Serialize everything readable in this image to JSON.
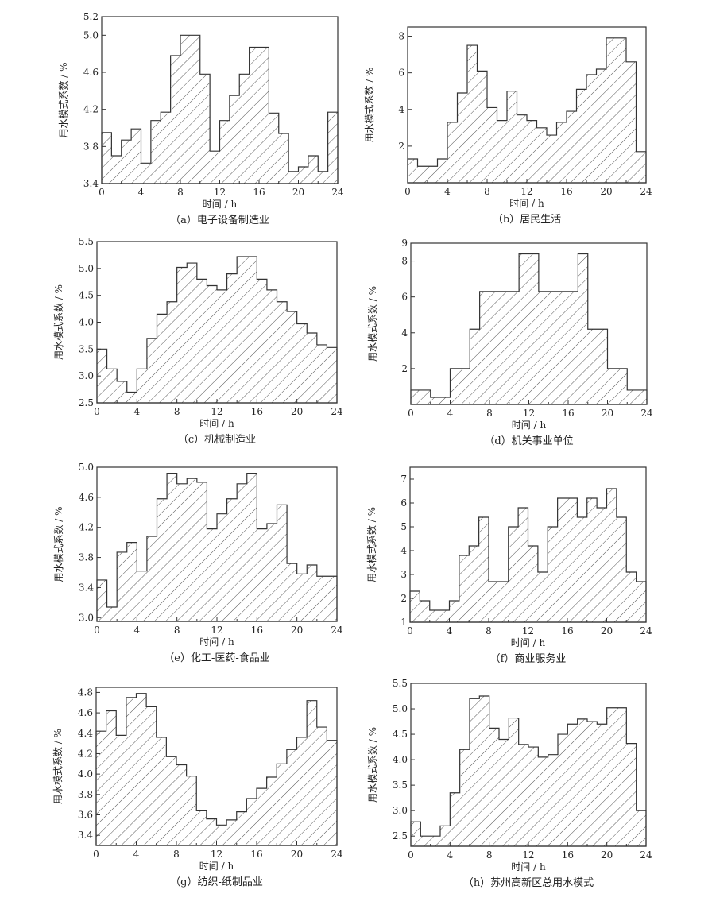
{
  "figure": {
    "ylabel": "用水模式系数 / %",
    "xlabel": "时间 / h",
    "hatch_color": "#333333"
  },
  "chart_data": [
    {
      "id": "a",
      "type": "bar",
      "caption": "（a）电子设备制造业",
      "xlabel": "时间 / h",
      "ylabel": "用水模式系数 / %",
      "xlim": [
        0,
        24
      ],
      "ylim": [
        3.4,
        5.2
      ],
      "xticks": [
        0,
        4,
        8,
        12,
        16,
        20,
        24
      ],
      "yticks": [
        3.4,
        3.8,
        4.2,
        4.6,
        5.0,
        5.2
      ],
      "ytick_labels": [
        "3.4",
        "3.8",
        "4.2",
        "4.6",
        "5.0",
        "5.2"
      ],
      "categories": [
        "0",
        "1",
        "2",
        "3",
        "4",
        "5",
        "6",
        "7",
        "8",
        "9",
        "10",
        "11",
        "12",
        "13",
        "14",
        "15",
        "16",
        "17",
        "18",
        "19",
        "20",
        "21",
        "22",
        "23"
      ],
      "values": [
        3.95,
        3.7,
        3.87,
        3.99,
        3.62,
        4.08,
        4.17,
        4.78,
        5.0,
        5.0,
        4.58,
        3.75,
        4.08,
        4.35,
        4.58,
        4.87,
        4.87,
        4.16,
        3.94,
        3.53,
        3.58,
        3.7,
        3.53,
        4.17
      ]
    },
    {
      "id": "b",
      "type": "bar",
      "caption": "（b）居民生活",
      "xlabel": "时间 / h",
      "ylabel": "用水模式系数 / %",
      "xlim": [
        0,
        24
      ],
      "ylim": [
        0,
        8.5
      ],
      "xticks": [
        0,
        4,
        8,
        12,
        16,
        20,
        24
      ],
      "yticks": [
        2,
        4,
        6,
        8
      ],
      "ytick_labels": [
        "2",
        "4",
        "6",
        "8"
      ],
      "categories": [
        "0",
        "1",
        "2",
        "3",
        "4",
        "5",
        "6",
        "7",
        "8",
        "9",
        "10",
        "11",
        "12",
        "13",
        "14",
        "15",
        "16",
        "17",
        "18",
        "19",
        "20",
        "21",
        "22",
        "23"
      ],
      "values": [
        1.3,
        0.9,
        0.9,
        1.3,
        3.3,
        4.9,
        7.5,
        6.1,
        4.1,
        3.4,
        5.0,
        3.7,
        3.4,
        3.0,
        2.6,
        3.3,
        3.9,
        5.1,
        5.9,
        6.2,
        7.9,
        7.9,
        6.6,
        1.7
      ]
    },
    {
      "id": "c",
      "type": "bar",
      "caption": "（c）机械制造业",
      "xlabel": "时间 / h",
      "ylabel": "用水模式系数 / %",
      "xlim": [
        0,
        24
      ],
      "ylim": [
        2.5,
        5.5
      ],
      "xticks": [
        0,
        4,
        8,
        12,
        16,
        20,
        24
      ],
      "yticks": [
        2.5,
        3.0,
        3.5,
        4.0,
        4.5,
        5.0,
        5.5
      ],
      "ytick_labels": [
        "2.5",
        "3.0",
        "3.5",
        "4.0",
        "4.5",
        "5.0",
        "5.5"
      ],
      "categories": [
        "0",
        "1",
        "2",
        "3",
        "4",
        "5",
        "6",
        "7",
        "8",
        "9",
        "10",
        "11",
        "12",
        "13",
        "14",
        "15",
        "16",
        "17",
        "18",
        "19",
        "20",
        "21",
        "22",
        "23"
      ],
      "values": [
        3.5,
        3.13,
        2.9,
        2.7,
        3.13,
        3.7,
        4.15,
        4.38,
        5.02,
        5.1,
        4.8,
        4.68,
        4.6,
        4.9,
        5.22,
        5.22,
        4.8,
        4.6,
        4.38,
        4.2,
        3.97,
        3.8,
        3.58,
        3.53
      ]
    },
    {
      "id": "d",
      "type": "bar",
      "caption": "（d）机关事业单位",
      "xlabel": "时间 / h",
      "ylabel": "用水模式系数 / %",
      "xlim": [
        0,
        24
      ],
      "ylim": [
        0,
        9
      ],
      "xticks": [
        0,
        4,
        8,
        12,
        16,
        20,
        24
      ],
      "yticks": [
        2,
        4,
        6,
        8,
        9
      ],
      "ytick_labels": [
        "2",
        "4",
        "6",
        "8",
        "9"
      ],
      "categories": [
        "0",
        "1",
        "2",
        "3",
        "4",
        "5",
        "6",
        "7",
        "8",
        "9",
        "10",
        "11",
        "12",
        "13",
        "14",
        "15",
        "16",
        "17",
        "18",
        "19",
        "20",
        "21",
        "22",
        "23"
      ],
      "values": [
        0.8,
        0.8,
        0.4,
        0.4,
        2.0,
        2.0,
        4.2,
        6.3,
        6.3,
        6.3,
        6.3,
        8.4,
        8.4,
        6.3,
        6.3,
        6.3,
        6.3,
        8.4,
        4.2,
        4.2,
        2.0,
        2.0,
        0.8,
        0.8
      ]
    },
    {
      "id": "e",
      "type": "bar",
      "caption": "（e）化工-医药-食品业",
      "xlabel": "时间 / h",
      "ylabel": "用水模式系数 / %",
      "xlim": [
        0,
        24
      ],
      "ylim": [
        2.95,
        5.0
      ],
      "xticks": [
        0,
        4,
        8,
        12,
        16,
        20,
        24
      ],
      "yticks": [
        3.0,
        3.4,
        3.8,
        4.2,
        4.6,
        5.0
      ],
      "ytick_labels": [
        "3.0",
        "3.4",
        "3.8",
        "4.2",
        "4.6",
        "5.0"
      ],
      "categories": [
        "0",
        "1",
        "2",
        "3",
        "4",
        "5",
        "6",
        "7",
        "8",
        "9",
        "10",
        "11",
        "12",
        "13",
        "14",
        "15",
        "16",
        "17",
        "18",
        "19",
        "20",
        "21",
        "22",
        "23"
      ],
      "values": [
        3.5,
        3.14,
        3.87,
        4.0,
        3.62,
        4.08,
        4.58,
        4.92,
        4.78,
        4.85,
        4.8,
        4.18,
        4.38,
        4.58,
        4.78,
        4.92,
        4.18,
        4.25,
        4.5,
        3.72,
        3.58,
        3.7,
        3.55,
        3.55
      ]
    },
    {
      "id": "f",
      "type": "bar",
      "caption": "（f）商业服务业",
      "xlabel": "时间 / h",
      "ylabel": "用水模式系数 / %",
      "xlim": [
        0,
        24
      ],
      "ylim": [
        1,
        7.5
      ],
      "xticks": [
        0,
        4,
        8,
        12,
        16,
        20,
        24
      ],
      "yticks": [
        1,
        2,
        3,
        4,
        5,
        6,
        7
      ],
      "ytick_labels": [
        "1",
        "2",
        "3",
        "4",
        "5",
        "6",
        "7"
      ],
      "categories": [
        "0",
        "1",
        "2",
        "3",
        "4",
        "5",
        "6",
        "7",
        "8",
        "9",
        "10",
        "11",
        "12",
        "13",
        "14",
        "15",
        "16",
        "17",
        "18",
        "19",
        "20",
        "21",
        "22",
        "23"
      ],
      "values": [
        2.3,
        1.9,
        1.5,
        1.5,
        1.9,
        3.8,
        4.2,
        5.4,
        2.7,
        2.7,
        5.0,
        5.8,
        4.2,
        3.1,
        5.0,
        6.2,
        6.2,
        5.4,
        6.2,
        5.8,
        6.6,
        5.4,
        3.1,
        2.7
      ]
    },
    {
      "id": "g",
      "type": "bar",
      "caption": "（g）纺织-纸制品业",
      "xlabel": "时间 / h",
      "ylabel": "用水模式系数 / %",
      "xlim": [
        0,
        24
      ],
      "ylim": [
        3.3,
        4.85
      ],
      "xticks": [
        0,
        4,
        8,
        12,
        16,
        20,
        24
      ],
      "yticks": [
        3.4,
        3.6,
        3.8,
        4.0,
        4.2,
        4.4,
        4.6,
        4.8
      ],
      "ytick_labels": [
        "3.4",
        "3.6",
        "3.8",
        "4.0",
        "4.2",
        "4.4",
        "4.6",
        "4.8"
      ],
      "categories": [
        "0",
        "1",
        "2",
        "3",
        "4",
        "5",
        "6",
        "7",
        "8",
        "9",
        "10",
        "11",
        "12",
        "13",
        "14",
        "15",
        "16",
        "17",
        "18",
        "19",
        "20",
        "21",
        "22",
        "23"
      ],
      "values": [
        4.42,
        4.62,
        4.38,
        4.75,
        4.79,
        4.66,
        4.36,
        4.17,
        4.09,
        3.98,
        3.64,
        3.56,
        3.5,
        3.55,
        3.63,
        3.76,
        3.86,
        3.97,
        4.1,
        4.24,
        4.36,
        4.72,
        4.46,
        4.33
      ]
    },
    {
      "id": "h",
      "type": "bar",
      "caption": "（h）苏州高新区总用水模式",
      "xlabel": "时间 / h",
      "ylabel": "用水模式系数 / %",
      "xlim": [
        0,
        24
      ],
      "ylim": [
        2.3,
        5.5
      ],
      "xticks": [
        0,
        4,
        8,
        12,
        16,
        20,
        24
      ],
      "yticks": [
        2.5,
        3.0,
        3.5,
        4.0,
        4.5,
        5.0,
        5.5
      ],
      "ytick_labels": [
        "2.5",
        "3.0",
        "3.5",
        "4.0",
        "4.5",
        "5.0",
        "5.5"
      ],
      "categories": [
        "0",
        "1",
        "2",
        "3",
        "4",
        "5",
        "6",
        "7",
        "8",
        "9",
        "10",
        "11",
        "12",
        "13",
        "14",
        "15",
        "16",
        "17",
        "18",
        "19",
        "20",
        "21",
        "22",
        "23"
      ],
      "values": [
        2.78,
        2.5,
        2.5,
        2.7,
        3.35,
        4.2,
        5.2,
        5.25,
        4.62,
        4.4,
        4.82,
        4.3,
        4.25,
        4.05,
        4.1,
        4.5,
        4.7,
        4.8,
        4.75,
        4.7,
        5.02,
        5.02,
        4.32,
        3.0
      ]
    }
  ]
}
